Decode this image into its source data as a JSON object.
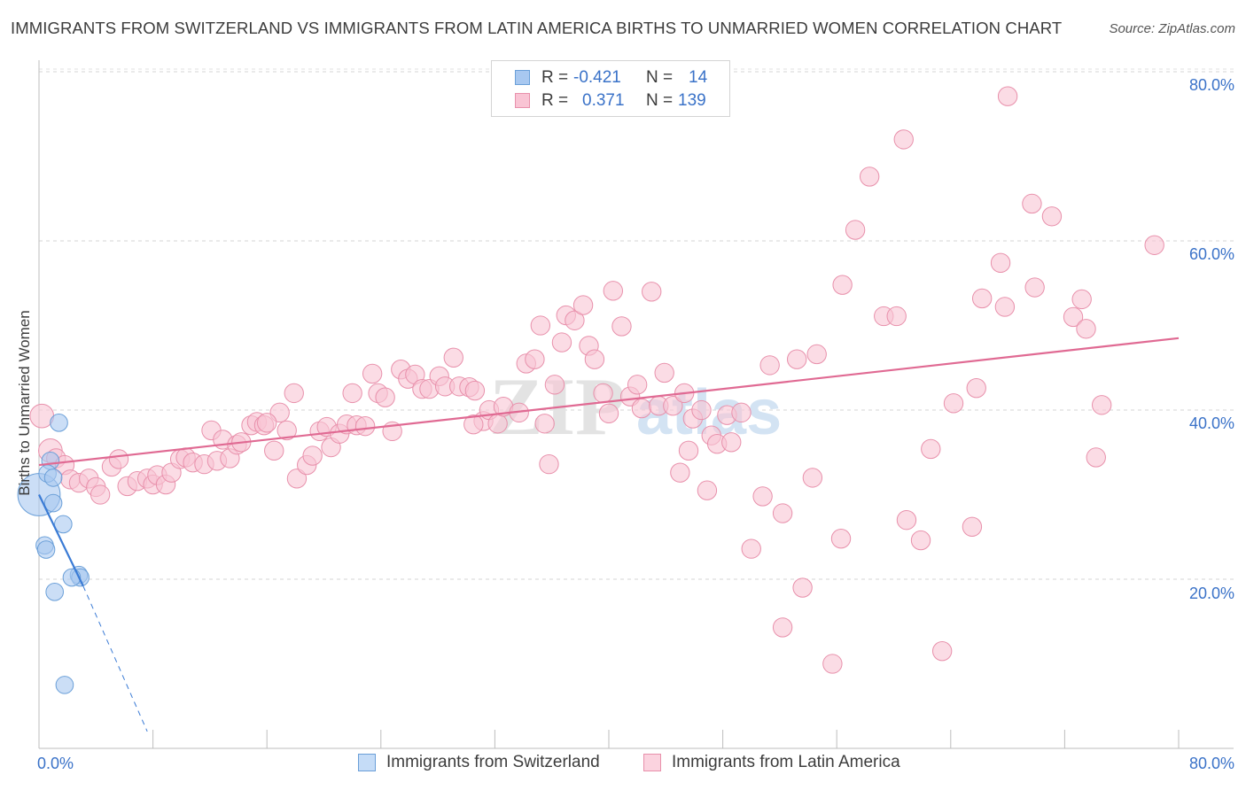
{
  "title": "IMMIGRANTS FROM SWITZERLAND VS IMMIGRANTS FROM LATIN AMERICA BIRTHS TO UNMARRIED WOMEN CORRELATION CHART",
  "source": "Source: ZipAtlas.com",
  "watermark": "ZIPatlas",
  "stats": [
    {
      "r_label": "R = ",
      "r_value": "-0.421",
      "n_label": "N = ",
      "n_value": "14",
      "color": "#a8c8f0",
      "border": "#6a9fd8"
    },
    {
      "r_label": "R = ",
      "r_value": "0.371",
      "n_label": "N = ",
      "n_value": "139",
      "color": "#f9c4d4",
      "border": "#e890ab"
    }
  ],
  "legend": [
    {
      "label": "Immigrants from Switzerland",
      "color": "#c5dcf7",
      "border": "#6a9fd8"
    },
    {
      "label": "Immigrants from Latin America",
      "color": "#fbd3df",
      "border": "#e890ab"
    }
  ],
  "y_axis_label": "Births to Unmarried Women",
  "y_ticks": [
    "80.0%",
    "60.0%",
    "40.0%",
    "20.0%"
  ],
  "x_ticks": [
    "0.0%",
    "80.0%"
  ],
  "chart_data": {
    "type": "scatter",
    "xlabel": "",
    "ylabel": "Births to Unmarried Women",
    "xlim": [
      0,
      80
    ],
    "ylim": [
      0,
      82
    ],
    "grid": true,
    "legend_placement": "bottom",
    "series": [
      {
        "name": "Immigrants from Switzerland",
        "color": "#a8c8f0",
        "stroke": "#6a9fd8",
        "trend_color": "#3a7bd5",
        "trend": {
          "x0": 0.0,
          "y0": 30.0,
          "x1": 3.1,
          "y1": 19.2,
          "dash_x1": 7.6,
          "dash_y1": 2.0
        },
        "points": [
          [
            0.0,
            30.0,
            26
          ],
          [
            0.8,
            34.0,
            10
          ],
          [
            0.6,
            32.5,
            10
          ],
          [
            1.0,
            32.0,
            10
          ],
          [
            1.4,
            38.5,
            10
          ],
          [
            1.0,
            29.0,
            10
          ],
          [
            0.4,
            24.0,
            10
          ],
          [
            0.5,
            23.5,
            10
          ],
          [
            1.7,
            26.5,
            10
          ],
          [
            2.8,
            20.5,
            10
          ],
          [
            2.9,
            20.2,
            10
          ],
          [
            2.3,
            20.2,
            10
          ],
          [
            1.1,
            18.5,
            10
          ],
          [
            1.8,
            7.5,
            10
          ]
        ]
      },
      {
        "name": "Immigrants from Latin America",
        "color": "#f9c4d4",
        "stroke": "#e890ab",
        "trend_color": "#e06a93",
        "trend": {
          "x0": 0.0,
          "y0": 33.5,
          "x1": 80.0,
          "y1": 48.5
        },
        "points": [
          [
            0.2,
            39.3,
            14
          ],
          [
            0.8,
            35.2,
            14
          ],
          [
            1.2,
            34.3,
            11
          ],
          [
            1.8,
            33.5,
            11
          ],
          [
            2.2,
            31.8,
            11
          ],
          [
            2.8,
            31.4,
            11
          ],
          [
            3.5,
            31.9,
            11
          ],
          [
            4.0,
            30.9,
            11
          ],
          [
            4.3,
            30.0,
            11
          ],
          [
            5.1,
            33.3,
            11
          ],
          [
            5.6,
            34.2,
            11
          ],
          [
            6.2,
            31.0,
            11
          ],
          [
            6.9,
            31.6,
            11
          ],
          [
            7.6,
            31.9,
            11
          ],
          [
            8.0,
            31.2,
            11
          ],
          [
            8.3,
            32.3,
            11
          ],
          [
            8.9,
            31.2,
            11
          ],
          [
            9.3,
            32.6,
            11
          ],
          [
            9.9,
            34.2,
            11
          ],
          [
            10.3,
            34.4,
            11
          ],
          [
            10.8,
            33.8,
            11
          ],
          [
            11.6,
            33.6,
            11
          ],
          [
            12.1,
            37.6,
            11
          ],
          [
            12.5,
            34.0,
            11
          ],
          [
            12.9,
            36.5,
            11
          ],
          [
            13.4,
            34.3,
            11
          ],
          [
            13.9,
            35.9,
            11
          ],
          [
            14.2,
            36.2,
            11
          ],
          [
            14.9,
            38.2,
            11
          ],
          [
            15.3,
            38.6,
            11
          ],
          [
            15.8,
            38.2,
            11
          ],
          [
            16.5,
            35.2,
            11
          ],
          [
            16.9,
            39.7,
            11
          ],
          [
            17.4,
            37.6,
            11
          ],
          [
            17.9,
            42.0,
            11
          ],
          [
            18.1,
            31.9,
            11
          ],
          [
            18.8,
            33.5,
            11
          ],
          [
            19.2,
            34.6,
            11
          ],
          [
            19.7,
            37.5,
            11
          ],
          [
            20.2,
            38.0,
            11
          ],
          [
            20.5,
            35.6,
            11
          ],
          [
            21.1,
            37.2,
            11
          ],
          [
            21.6,
            38.3,
            11
          ],
          [
            22.0,
            42.0,
            11
          ],
          [
            22.3,
            38.2,
            11
          ],
          [
            22.9,
            38.1,
            11
          ],
          [
            23.4,
            44.3,
            11
          ],
          [
            23.8,
            42.0,
            11
          ],
          [
            24.3,
            41.5,
            11
          ],
          [
            24.8,
            37.5,
            11
          ],
          [
            25.4,
            44.8,
            11
          ],
          [
            25.9,
            43.7,
            11
          ],
          [
            26.4,
            44.2,
            11
          ],
          [
            26.9,
            42.5,
            11
          ],
          [
            27.4,
            42.5,
            11
          ],
          [
            28.1,
            44.0,
            11
          ],
          [
            28.5,
            42.8,
            11
          ],
          [
            29.1,
            46.2,
            11
          ],
          [
            29.5,
            42.8,
            11
          ],
          [
            30.2,
            42.7,
            11
          ],
          [
            30.6,
            42.3,
            11
          ],
          [
            31.2,
            38.7,
            11
          ],
          [
            31.6,
            40.0,
            11
          ],
          [
            32.2,
            38.4,
            11
          ],
          [
            32.6,
            40.4,
            11
          ],
          [
            33.7,
            39.7,
            11
          ],
          [
            34.2,
            45.5,
            11
          ],
          [
            34.8,
            46.0,
            11
          ],
          [
            35.2,
            50.0,
            11
          ],
          [
            35.5,
            38.4,
            11
          ],
          [
            35.8,
            33.6,
            11
          ],
          [
            36.2,
            43.0,
            11
          ],
          [
            36.7,
            48.0,
            11
          ],
          [
            37.0,
            51.2,
            11
          ],
          [
            37.6,
            50.6,
            11
          ],
          [
            38.2,
            52.4,
            11
          ],
          [
            38.6,
            47.6,
            11
          ],
          [
            39.0,
            46.0,
            11
          ],
          [
            39.6,
            42.0,
            11
          ],
          [
            40.0,
            39.6,
            11
          ],
          [
            40.3,
            54.1,
            11
          ],
          [
            40.9,
            49.9,
            11
          ],
          [
            41.5,
            41.6,
            11
          ],
          [
            42.0,
            43.0,
            11
          ],
          [
            42.3,
            40.2,
            11
          ],
          [
            43.0,
            54.0,
            11
          ],
          [
            43.5,
            40.5,
            11
          ],
          [
            43.9,
            44.4,
            11
          ],
          [
            44.5,
            40.5,
            11
          ],
          [
            45.0,
            32.6,
            11
          ],
          [
            45.6,
            35.2,
            11
          ],
          [
            45.9,
            39.0,
            11
          ],
          [
            46.5,
            40.0,
            11
          ],
          [
            46.9,
            30.5,
            11
          ],
          [
            47.2,
            37.0,
            11
          ],
          [
            47.6,
            36.0,
            11
          ],
          [
            48.3,
            39.4,
            11
          ],
          [
            48.6,
            36.2,
            11
          ],
          [
            49.3,
            39.7,
            11
          ],
          [
            50.0,
            23.6,
            11
          ],
          [
            50.8,
            29.8,
            11
          ],
          [
            51.3,
            45.3,
            11
          ],
          [
            52.2,
            27.8,
            11
          ],
          [
            52.2,
            14.3,
            11
          ],
          [
            53.2,
            46.0,
            11
          ],
          [
            53.6,
            19.0,
            11
          ],
          [
            54.3,
            32.0,
            11
          ],
          [
            54.6,
            46.6,
            11
          ],
          [
            55.7,
            10.0,
            11
          ],
          [
            56.3,
            24.8,
            11
          ],
          [
            56.4,
            54.8,
            11
          ],
          [
            57.3,
            61.3,
            11
          ],
          [
            58.3,
            67.6,
            11
          ],
          [
            59.3,
            51.1,
            11
          ],
          [
            60.2,
            51.1,
            11
          ],
          [
            60.7,
            72.0,
            11
          ],
          [
            60.9,
            27.0,
            11
          ],
          [
            61.9,
            24.6,
            11
          ],
          [
            62.6,
            35.4,
            11
          ],
          [
            63.4,
            11.5,
            11
          ],
          [
            64.2,
            40.8,
            11
          ],
          [
            65.5,
            26.2,
            11
          ],
          [
            65.8,
            42.6,
            11
          ],
          [
            66.2,
            53.2,
            11
          ],
          [
            67.5,
            57.4,
            11
          ],
          [
            67.8,
            52.2,
            11
          ],
          [
            68.0,
            77.1,
            11
          ],
          [
            69.7,
            64.4,
            11
          ],
          [
            69.9,
            54.5,
            11
          ],
          [
            71.1,
            62.9,
            11
          ],
          [
            72.6,
            51.0,
            11
          ],
          [
            73.2,
            53.1,
            11
          ],
          [
            73.5,
            49.6,
            11
          ],
          [
            74.2,
            34.4,
            11
          ],
          [
            74.6,
            40.6,
            11
          ],
          [
            78.3,
            59.5,
            11
          ],
          [
            16.0,
            38.5,
            11
          ],
          [
            30.5,
            38.3,
            11
          ],
          [
            45.3,
            42.0,
            11
          ]
        ]
      }
    ]
  }
}
